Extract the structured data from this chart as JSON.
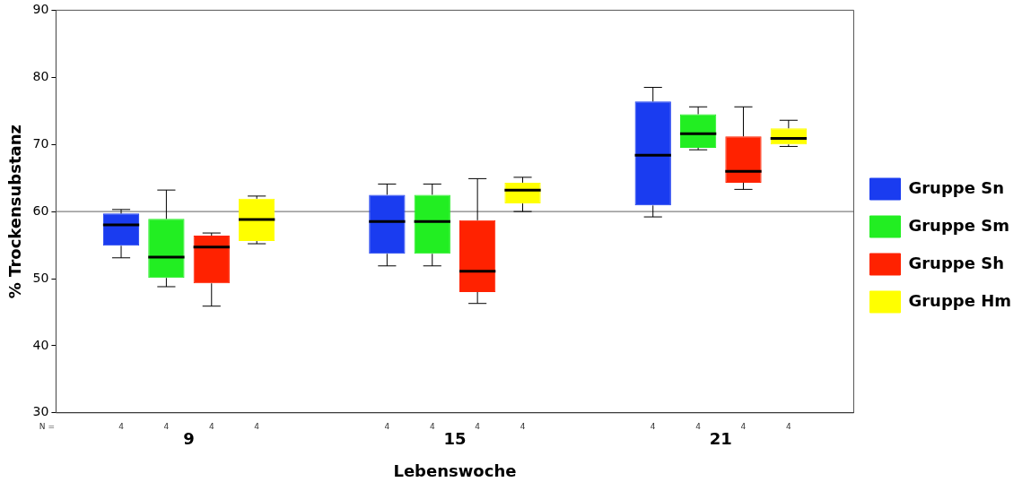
{
  "chart_data": {
    "type": "box",
    "xlabel": "Lebenswoche",
    "ylabel": "% Trockensubstanz",
    "categories": [
      "9",
      "15",
      "21"
    ],
    "series": [
      {
        "name": "Gruppe Sn",
        "color": "#1a3cf0",
        "boxes": [
          {
            "low": 53.1,
            "q1": 54.9,
            "median": 58.0,
            "q3": 59.7,
            "high": 60.3
          },
          {
            "low": 51.9,
            "q1": 53.7,
            "median": 58.5,
            "q3": 62.5,
            "high": 64.1
          },
          {
            "low": 59.2,
            "q1": 60.9,
            "median": 68.4,
            "q3": 76.4,
            "high": 78.5
          }
        ]
      },
      {
        "name": "Gruppe Sm",
        "color": "#22ee22",
        "boxes": [
          {
            "low": 48.8,
            "q1": 50.1,
            "median": 53.2,
            "q3": 58.9,
            "high": 63.2
          },
          {
            "low": 51.9,
            "q1": 53.7,
            "median": 58.5,
            "q3": 62.5,
            "high": 64.1
          },
          {
            "low": 69.2,
            "q1": 69.5,
            "median": 71.6,
            "q3": 74.5,
            "high": 75.6
          }
        ]
      },
      {
        "name": "Gruppe Sh",
        "color": "#ff2200",
        "boxes": [
          {
            "low": 45.9,
            "q1": 49.3,
            "median": 54.7,
            "q3": 56.4,
            "high": 56.8
          },
          {
            "low": 46.3,
            "q1": 48.0,
            "median": 51.1,
            "q3": 58.7,
            "high": 64.9
          },
          {
            "low": 63.3,
            "q1": 64.3,
            "median": 66.0,
            "q3": 71.2,
            "high": 75.6
          }
        ]
      },
      {
        "name": "Gruppe Hm",
        "color": "#ffff00",
        "boxes": [
          {
            "low": 55.2,
            "q1": 55.6,
            "median": 58.8,
            "q3": 61.9,
            "high": 62.3
          },
          {
            "low": 60.0,
            "q1": 61.2,
            "median": 63.2,
            "q3": 64.3,
            "high": 65.1
          },
          {
            "low": 69.7,
            "q1": 70.0,
            "median": 70.9,
            "q3": 72.4,
            "high": 73.6
          }
        ]
      }
    ],
    "ylim": [
      30,
      90
    ],
    "yticks": [
      30,
      40,
      50,
      60,
      70,
      80,
      90
    ],
    "grid": false,
    "legend": "right",
    "ref_lines": [
      {
        "axis": "y",
        "value": 60,
        "color": "#808080"
      }
    ],
    "annotations": [
      "N =",
      "4",
      "4",
      "4",
      "4",
      "4",
      "4",
      "4",
      "4",
      "4",
      "4",
      "4",
      "4"
    ]
  }
}
